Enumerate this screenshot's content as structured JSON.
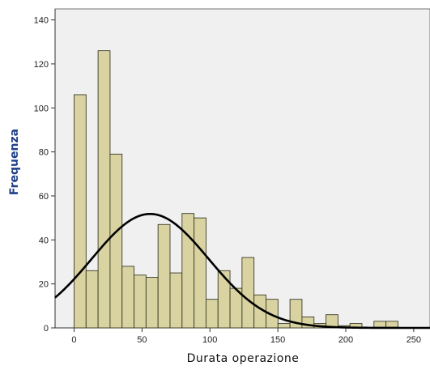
{
  "chart_data": {
    "type": "bar",
    "subtype": "histogram-with-normal-curve",
    "xlabel": "Durata operazione",
    "ylabel": "Frequenza",
    "xlim": [
      -14,
      262
    ],
    "ylim": [
      0,
      145
    ],
    "x_ticks": [
      0,
      50,
      100,
      150,
      200,
      250
    ],
    "y_ticks": [
      0,
      20,
      40,
      60,
      80,
      100,
      120,
      140
    ],
    "bin_width": 8.83,
    "bins": [
      {
        "x0": 0.0,
        "count": 106
      },
      {
        "x0": 8.83,
        "count": 26
      },
      {
        "x0": 17.66,
        "count": 126
      },
      {
        "x0": 26.49,
        "count": 79
      },
      {
        "x0": 35.32,
        "count": 28
      },
      {
        "x0": 44.15,
        "count": 24
      },
      {
        "x0": 52.98,
        "count": 23
      },
      {
        "x0": 61.81,
        "count": 47
      },
      {
        "x0": 70.64,
        "count": 25
      },
      {
        "x0": 79.47,
        "count": 52
      },
      {
        "x0": 88.3,
        "count": 50
      },
      {
        "x0": 97.13,
        "count": 13
      },
      {
        "x0": 105.96,
        "count": 26
      },
      {
        "x0": 114.79,
        "count": 18
      },
      {
        "x0": 123.62,
        "count": 32
      },
      {
        "x0": 132.45,
        "count": 15
      },
      {
        "x0": 141.28,
        "count": 13
      },
      {
        "x0": 150.11,
        "count": 2
      },
      {
        "x0": 158.94,
        "count": 13
      },
      {
        "x0": 167.77,
        "count": 5
      },
      {
        "x0": 176.6,
        "count": 2
      },
      {
        "x0": 185.43,
        "count": 6
      },
      {
        "x0": 194.26,
        "count": 1
      },
      {
        "x0": 203.09,
        "count": 2
      },
      {
        "x0": 211.92,
        "count": 0
      },
      {
        "x0": 220.75,
        "count": 3
      },
      {
        "x0": 229.58,
        "count": 3
      }
    ],
    "normal_curve": {
      "mean": 56,
      "sd": 43,
      "peak": 51.8
    },
    "colors": {
      "plot_bg": "#f0f0f0",
      "bar_fill": "#d9d3a2",
      "bar_stroke": "#3a3a26",
      "curve": "#000000",
      "ylabel_color": "#1f3f8a",
      "xlabel_color": "#111111"
    }
  }
}
